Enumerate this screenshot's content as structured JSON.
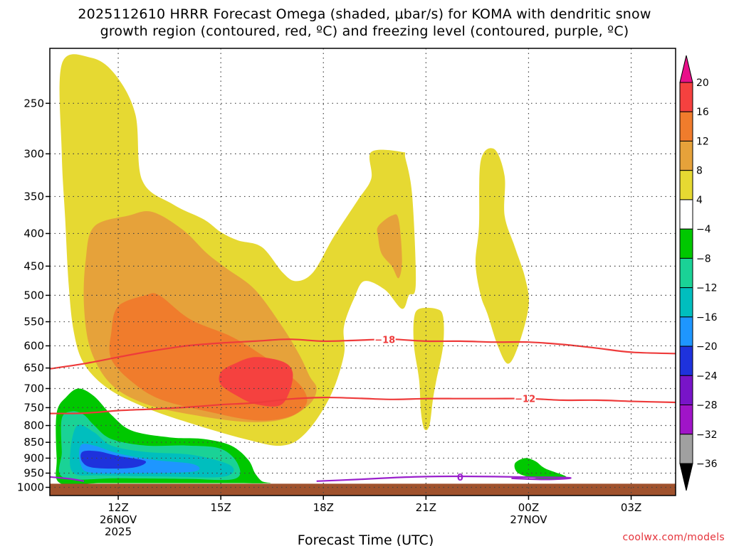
{
  "title_line1": "2025112610 HRRR Forecast Omega (shaded, μbar/s) for KOMA with dendritic snow",
  "title_line2": "growth region (contoured, red, ºC) and freezing level (contoured, purple, ºC)",
  "credit": "coolwx.com/models",
  "chart_data": {
    "type": "contour",
    "xlabel": "Forecast Time (UTC)",
    "x_range_hours": [
      10,
      28.3
    ],
    "y_scale": "log-pressure",
    "y_range_hPa": [
      1030,
      205
    ],
    "y_ticks": [
      "250",
      "300",
      "350",
      "400",
      "450",
      "500",
      "550",
      "600",
      "650",
      "700",
      "750",
      "800",
      "850",
      "900",
      "950",
      "1000"
    ],
    "x_ticks": [
      {
        "hour": 12,
        "label": "12Z",
        "sub": [
          "26NOV",
          "2025"
        ]
      },
      {
        "hour": 15,
        "label": "15Z",
        "sub": []
      },
      {
        "hour": 18,
        "label": "18Z",
        "sub": []
      },
      {
        "hour": 21,
        "label": "21Z",
        "sub": []
      },
      {
        "hour": 24,
        "label": "00Z",
        "sub": [
          "27NOV"
        ]
      },
      {
        "hour": 27,
        "label": "03Z",
        "sub": []
      }
    ],
    "grid": true,
    "ground_level_hPa": 987,
    "ground_color": "#a0522d",
    "colorbar": {
      "levels": [
        20,
        16,
        12,
        8,
        4,
        -4,
        -8,
        -12,
        -16,
        -20,
        -24,
        -28,
        -32,
        -36
      ],
      "colors_top_to_bottom": [
        "#e8108a",
        "#f5413f",
        "#f07c2c",
        "#e6a23a",
        "#e6d932",
        "#ffffff",
        "#00c800",
        "#1ad296",
        "#00bebe",
        "#1e96ff",
        "#1e32dc",
        "#7814c8",
        "#a014c8",
        "#a0a0a0",
        "#000000"
      ]
    },
    "regions": [
      {
        "name": "ascent-4",
        "level": 4,
        "color": "#e6d932",
        "points": [
          [
            10.35,
            217
          ],
          [
            11.2,
            212
          ],
          [
            11.9,
            225
          ],
          [
            12.5,
            260
          ],
          [
            12.7,
            330
          ],
          [
            13.6,
            360
          ],
          [
            14.5,
            380
          ],
          [
            15.0,
            398
          ],
          [
            15.5,
            410
          ],
          [
            16.2,
            420
          ],
          [
            16.8,
            460
          ],
          [
            17.2,
            475
          ],
          [
            17.7,
            460
          ],
          [
            18.3,
            405
          ],
          [
            19.0,
            355
          ],
          [
            19.4,
            328
          ],
          [
            19.4,
            298
          ],
          [
            20.3,
            298
          ],
          [
            20.4,
            305
          ],
          [
            20.6,
            350
          ],
          [
            20.7,
            480
          ],
          [
            20.5,
            500
          ],
          [
            20.3,
            525
          ],
          [
            19.8,
            490
          ],
          [
            19.2,
            475
          ],
          [
            18.9,
            505
          ],
          [
            18.6,
            560
          ],
          [
            18.6,
            620
          ],
          [
            18.2,
            720
          ],
          [
            17.5,
            820
          ],
          [
            16.8,
            860
          ],
          [
            15.7,
            840
          ],
          [
            14.0,
            790
          ],
          [
            12.8,
            750
          ],
          [
            11.7,
            700
          ],
          [
            11.0,
            640
          ],
          [
            10.7,
            570
          ],
          [
            10.55,
            480
          ],
          [
            10.45,
            380
          ],
          [
            10.35,
            300
          ]
        ]
      },
      {
        "name": "ascent-4-east",
        "level": 4,
        "color": "#e6d932",
        "points": [
          [
            22.6,
            308
          ],
          [
            23.0,
            295
          ],
          [
            23.3,
            325
          ],
          [
            23.3,
            375
          ],
          [
            23.6,
            420
          ],
          [
            23.9,
            470
          ],
          [
            24.0,
            520
          ],
          [
            23.7,
            600
          ],
          [
            23.4,
            640
          ],
          [
            23.1,
            600
          ],
          [
            22.8,
            535
          ],
          [
            22.6,
            500
          ],
          [
            22.45,
            445
          ],
          [
            22.55,
            390
          ]
        ]
      },
      {
        "name": "ascent-4-mid",
        "level": 4,
        "color": "#e6d932",
        "points": [
          [
            20.8,
            525
          ],
          [
            21.3,
            525
          ],
          [
            21.5,
            540
          ],
          [
            21.5,
            600
          ],
          [
            21.3,
            680
          ],
          [
            21.2,
            730
          ],
          [
            21.1,
            800
          ],
          [
            20.95,
            810
          ],
          [
            20.85,
            760
          ],
          [
            20.8,
            680
          ],
          [
            20.65,
            600
          ],
          [
            20.65,
            545
          ]
        ]
      },
      {
        "name": "ascent-8",
        "level": 8,
        "color": "#e6a23a",
        "points": [
          [
            11.3,
            390
          ],
          [
            12.3,
            375
          ],
          [
            13.0,
            370
          ],
          [
            13.9,
            395
          ],
          [
            14.6,
            430
          ],
          [
            15.2,
            455
          ],
          [
            16.0,
            490
          ],
          [
            16.8,
            560
          ],
          [
            17.3,
            620
          ],
          [
            17.6,
            670
          ],
          [
            17.8,
            700
          ],
          [
            17.6,
            740
          ],
          [
            16.9,
            780
          ],
          [
            15.8,
            790
          ],
          [
            14.2,
            770
          ],
          [
            12.8,
            740
          ],
          [
            11.8,
            690
          ],
          [
            11.2,
            610
          ],
          [
            11.0,
            520
          ],
          [
            11.05,
            440
          ]
        ]
      },
      {
        "name": "ascent-8-upper",
        "level": 8,
        "color": "#e6a23a",
        "points": [
          [
            19.6,
            390
          ],
          [
            20.0,
            375
          ],
          [
            20.2,
            380
          ],
          [
            20.3,
            440
          ],
          [
            20.2,
            470
          ],
          [
            20.0,
            450
          ],
          [
            19.7,
            430
          ],
          [
            19.6,
            405
          ]
        ]
      },
      {
        "name": "ascent-12",
        "level": 12,
        "color": "#f07c2c",
        "points": [
          [
            12.0,
            520
          ],
          [
            12.8,
            500
          ],
          [
            13.2,
            500
          ],
          [
            14.1,
            545
          ],
          [
            15.3,
            580
          ],
          [
            16.2,
            620
          ],
          [
            16.9,
            660
          ],
          [
            17.4,
            700
          ],
          [
            17.5,
            740
          ],
          [
            17.0,
            775
          ],
          [
            16.0,
            785
          ],
          [
            14.6,
            760
          ],
          [
            13.3,
            730
          ],
          [
            12.5,
            690
          ],
          [
            11.8,
            630
          ],
          [
            11.8,
            570
          ]
        ]
      },
      {
        "name": "ascent-16",
        "level": 16,
        "color": "#f5413f",
        "points": [
          [
            15.0,
            660
          ],
          [
            15.4,
            640
          ],
          [
            16.0,
            625
          ],
          [
            16.8,
            635
          ],
          [
            17.1,
            660
          ],
          [
            17.0,
            710
          ],
          [
            16.7,
            745
          ],
          [
            16.0,
            740
          ],
          [
            15.5,
            720
          ],
          [
            15.0,
            690
          ]
        ]
      },
      {
        "name": "descent-4",
        "level": -4,
        "color": "#00c800",
        "points": [
          [
            10.2,
            765
          ],
          [
            10.5,
            720
          ],
          [
            10.85,
            700
          ],
          [
            11.3,
            720
          ],
          [
            11.8,
            770
          ],
          [
            12.4,
            815
          ],
          [
            13.5,
            835
          ],
          [
            14.5,
            840
          ],
          [
            15.3,
            860
          ],
          [
            15.8,
            905
          ],
          [
            16.0,
            950
          ],
          [
            16.2,
            978
          ],
          [
            16.4,
            985
          ],
          [
            15.0,
            985
          ],
          [
            13.5,
            985
          ],
          [
            11.5,
            985
          ],
          [
            10.3,
            985
          ],
          [
            10.2,
            900
          ]
        ]
      },
      {
        "name": "descent-4-east",
        "level": -4,
        "color": "#00c800",
        "points": [
          [
            23.6,
            918
          ],
          [
            23.9,
            900
          ],
          [
            24.2,
            910
          ],
          [
            24.5,
            935
          ],
          [
            25.1,
            962
          ],
          [
            24.8,
            972
          ],
          [
            24.2,
            968
          ],
          [
            23.7,
            950
          ]
        ]
      },
      {
        "name": "descent-8",
        "level": -8,
        "color": "#1ad296",
        "points": [
          [
            10.35,
            780
          ],
          [
            10.65,
            760
          ],
          [
            11.0,
            770
          ],
          [
            11.3,
            800
          ],
          [
            11.8,
            840
          ],
          [
            12.8,
            860
          ],
          [
            14.0,
            860
          ],
          [
            15.0,
            870
          ],
          [
            15.5,
            920
          ],
          [
            15.4,
            970
          ],
          [
            14.0,
            970
          ],
          [
            12.0,
            968
          ],
          [
            10.4,
            965
          ],
          [
            10.35,
            880
          ]
        ]
      },
      {
        "name": "descent-12",
        "level": -12,
        "color": "#00bebe",
        "points": [
          [
            10.8,
            800
          ],
          [
            11.3,
            820
          ],
          [
            11.8,
            860
          ],
          [
            12.8,
            880
          ],
          [
            14.2,
            890
          ],
          [
            15.3,
            925
          ],
          [
            15.1,
            962
          ],
          [
            13.5,
            962
          ],
          [
            11.5,
            958
          ],
          [
            10.7,
            950
          ],
          [
            10.6,
            880
          ]
        ]
      },
      {
        "name": "descent-16",
        "level": -16,
        "color": "#1e96ff",
        "points": [
          [
            10.9,
            860
          ],
          [
            11.3,
            860
          ],
          [
            12.0,
            885
          ],
          [
            13.0,
            905
          ],
          [
            14.2,
            920
          ],
          [
            14.2,
            945
          ],
          [
            12.5,
            950
          ],
          [
            11.2,
            948
          ],
          [
            10.9,
            920
          ]
        ]
      },
      {
        "name": "descent-20",
        "level": -20,
        "color": "#1e32dc",
        "points": [
          [
            10.95,
            880
          ],
          [
            11.4,
            878
          ],
          [
            12.0,
            893
          ],
          [
            12.8,
            910
          ],
          [
            12.4,
            932
          ],
          [
            11.3,
            932
          ],
          [
            10.95,
            912
          ]
        ]
      }
    ],
    "contours": [
      {
        "name": "isotherm-minus18",
        "value": -18,
        "label": "-18",
        "label_hour": 19.8,
        "color": "#ee3b3b",
        "points": [
          [
            10,
            652
          ],
          [
            11.0,
            640
          ],
          [
            12.0,
            625
          ],
          [
            13.0,
            611
          ],
          [
            14.0,
            600
          ],
          [
            15.0,
            594
          ],
          [
            16.0,
            590
          ],
          [
            17.0,
            586
          ],
          [
            18.0,
            590
          ],
          [
            19.0,
            588
          ],
          [
            20.0,
            586
          ],
          [
            21.0,
            590
          ],
          [
            22.0,
            590
          ],
          [
            23.0,
            592
          ],
          [
            24.0,
            592
          ],
          [
            25.0,
            597
          ],
          [
            26.0,
            605
          ],
          [
            27.0,
            614
          ],
          [
            28.3,
            617
          ]
        ]
      },
      {
        "name": "isotherm-minus12",
        "value": -12,
        "label": "-12",
        "label_hour": 23.9,
        "color": "#ee3b3b",
        "points": [
          [
            10,
            766
          ],
          [
            11.0,
            765
          ],
          [
            12.0,
            758
          ],
          [
            13.0,
            754
          ],
          [
            14.0,
            749
          ],
          [
            15.0,
            742
          ],
          [
            16.0,
            737
          ],
          [
            17.0,
            727
          ],
          [
            18.0,
            723
          ],
          [
            19.0,
            725
          ],
          [
            20.0,
            728
          ],
          [
            21.0,
            726
          ],
          [
            22.0,
            726
          ],
          [
            23.0,
            726
          ],
          [
            24.0,
            726
          ],
          [
            25.0,
            730
          ],
          [
            26.0,
            730
          ],
          [
            27.0,
            733
          ],
          [
            28.3,
            736
          ]
        ]
      },
      {
        "name": "freezing-level-0",
        "value": 0,
        "label": "0",
        "label_hour": 22.0,
        "color": "#9a20cc",
        "points": [
          [
            10.0,
            963
          ],
          [
            10.6,
            970
          ],
          [
            11.0,
            978
          ]
        ]
      },
      {
        "name": "freezing-level-0-b",
        "value": 0,
        "label": "",
        "label_hour": 0,
        "color": "#9a20cc",
        "points": [
          [
            17.8,
            978
          ],
          [
            19.0,
            972
          ],
          [
            20.0,
            966
          ],
          [
            21.0,
            962
          ],
          [
            22.0,
            961
          ],
          [
            23.0,
            962
          ],
          [
            24.0,
            964
          ],
          [
            25.0,
            965
          ],
          [
            25.2,
            968
          ],
          [
            24.5,
            972
          ],
          [
            23.5,
            968
          ]
        ]
      }
    ]
  }
}
